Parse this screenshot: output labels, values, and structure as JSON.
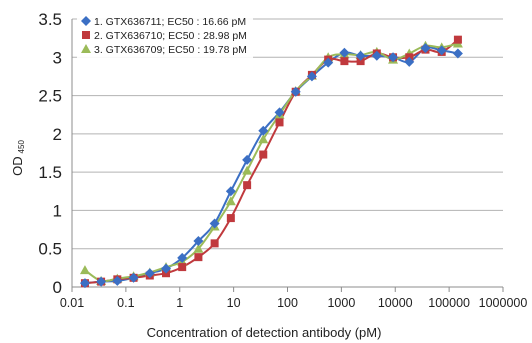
{
  "chart_data": {
    "type": "scatter",
    "xlabel": "Concentration of detection antibody (pM)",
    "ylabel": "OD",
    "ylabel_subscript": "450",
    "xscale": "log",
    "xlim": [
      0.01,
      1000000
    ],
    "ylim": [
      0,
      3.5
    ],
    "xticks": [
      0.01,
      0.1,
      1,
      10,
      100,
      1000,
      10000,
      100000,
      1000000
    ],
    "xtick_labels": [
      "0.01",
      "0.1",
      "1",
      "10",
      "100",
      "1000",
      "10000",
      "100000",
      "1000000"
    ],
    "yticks": [
      0,
      0.5,
      1,
      1.5,
      2,
      2.5,
      3,
      3.5
    ],
    "ytick_labels": [
      "0",
      "0.5",
      "1",
      "1.5",
      "2",
      "2.5",
      "3",
      "3.5"
    ],
    "grid": "horizontal",
    "legend_position": "top-left",
    "series": [
      {
        "name": "1. GTX636711; EC50 : 16.66 pM",
        "color": "#3b6fc4",
        "marker": "diamond",
        "x": [
          0.0174,
          0.0347,
          0.0694,
          0.139,
          0.278,
          0.556,
          1.11,
          2.22,
          4.44,
          8.88,
          17.8,
          35.5,
          71.1,
          142,
          284,
          569,
          1138,
          2275,
          4550,
          9100,
          18200,
          36400,
          72800,
          145600
        ],
        "y": [
          0.05,
          0.07,
          0.08,
          0.12,
          0.18,
          0.24,
          0.38,
          0.6,
          0.83,
          1.25,
          1.66,
          2.04,
          2.28,
          2.55,
          2.75,
          2.93,
          3.06,
          3.02,
          3.02,
          3.0,
          2.94,
          3.12,
          3.09,
          3.05
        ]
      },
      {
        "name": "2. GTX636710; EC50 : 28.98 pM",
        "color": "#c0393d",
        "marker": "square",
        "x": [
          0.0174,
          0.0347,
          0.0694,
          0.139,
          0.278,
          0.556,
          1.11,
          2.22,
          4.44,
          8.88,
          17.8,
          35.5,
          71.1,
          142,
          284,
          569,
          1138,
          2275,
          4550,
          9100,
          18200,
          36400,
          72800,
          145600
        ],
        "y": [
          0.05,
          0.07,
          0.1,
          0.12,
          0.15,
          0.18,
          0.26,
          0.39,
          0.57,
          0.9,
          1.33,
          1.73,
          2.15,
          2.55,
          2.77,
          2.97,
          2.95,
          2.95,
          3.05,
          3.0,
          3.0,
          3.1,
          3.07,
          3.23
        ]
      },
      {
        "name": "3. GTX636709; EC50 : 19.78 pM",
        "color": "#9bbb59",
        "marker": "triangle",
        "x": [
          0.0174,
          0.0347,
          0.0694,
          0.139,
          0.278,
          0.556,
          1.11,
          2.22,
          4.44,
          8.88,
          17.8,
          35.5,
          71.1,
          142,
          284,
          569,
          1138,
          2275,
          4550,
          9100,
          18200,
          36400,
          72800,
          145600
        ],
        "y": [
          0.22,
          0.08,
          0.11,
          0.14,
          0.19,
          0.26,
          0.33,
          0.5,
          0.79,
          1.12,
          1.52,
          1.93,
          2.25,
          2.56,
          2.76,
          3.0,
          3.04,
          3.03,
          3.07,
          2.97,
          3.05,
          3.15,
          3.13,
          3.18
        ]
      }
    ]
  }
}
